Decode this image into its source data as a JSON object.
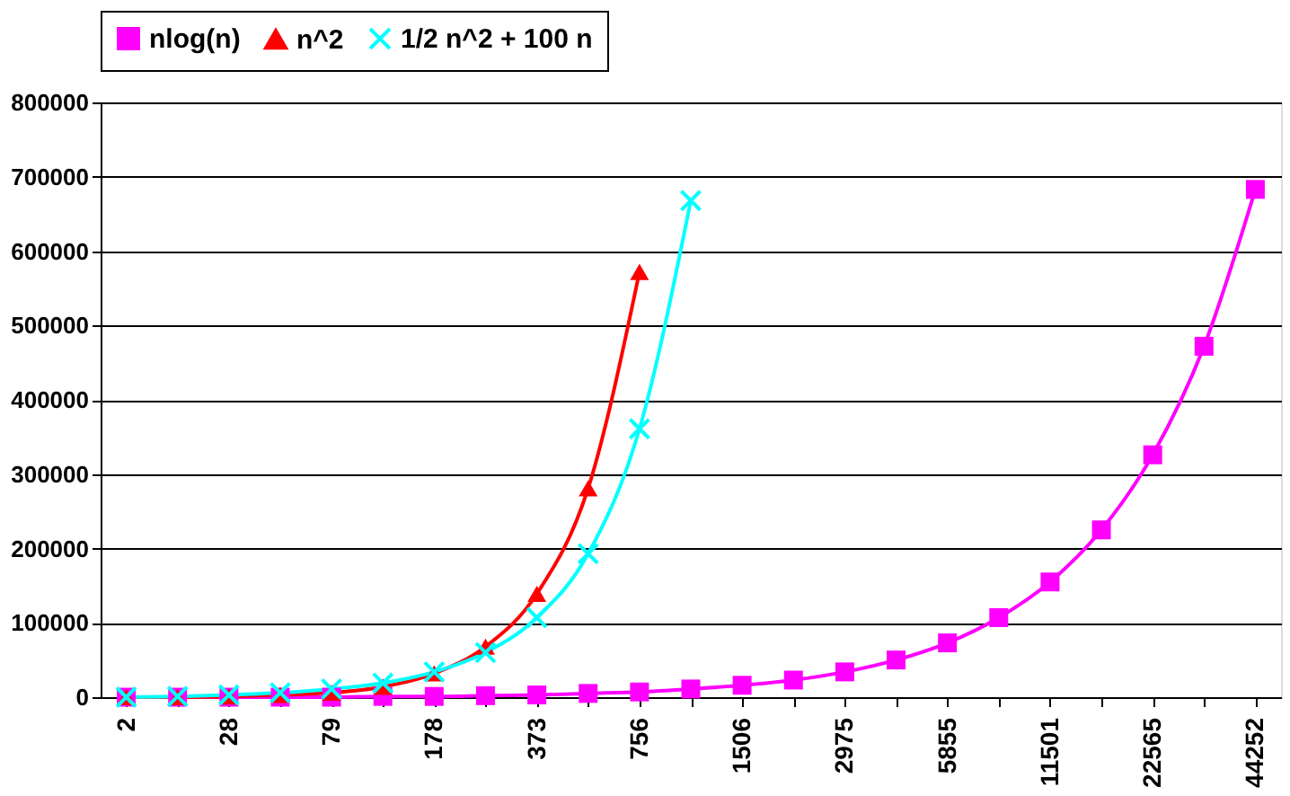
{
  "chart_data": {
    "type": "line",
    "categories": [
      "2",
      null,
      "28",
      null,
      "79",
      null,
      "178",
      null,
      "373",
      null,
      "756",
      null,
      "1506",
      null,
      "2975",
      null,
      "5855",
      null,
      "11501",
      null,
      "22565",
      null,
      "44252"
    ],
    "series": [
      {
        "name": "nlog(n)",
        "color": "#ff00ff",
        "marker": "square",
        "values": [
          0,
          0,
          0,
          0,
          0,
          1000,
          1000,
          2000,
          3000,
          5000,
          7000,
          11000,
          16000,
          23000,
          34000,
          50000,
          73000,
          107000,
          155000,
          225000,
          326000,
          472000,
          683000
        ]
      },
      {
        "name": "n^2",
        "color": "#ff0000",
        "marker": "triangle",
        "values": [
          0,
          0,
          1000,
          3000,
          6000,
          14000,
          32000,
          68000,
          139000,
          281000,
          572000,
          null,
          null,
          null,
          null,
          null,
          null,
          null,
          null,
          null,
          null,
          null,
          null
        ]
      },
      {
        "name": "1/2 n^2 + 100 n",
        "color": "#00ffff",
        "marker": "cross",
        "values": [
          0,
          1000,
          3000,
          6000,
          11000,
          19000,
          34000,
          60000,
          107000,
          193000,
          361000,
          668000,
          null,
          null,
          null,
          null,
          null,
          null,
          null,
          null,
          null,
          null,
          null
        ]
      }
    ],
    "ylim": [
      0,
      800000
    ],
    "yticks": [
      0,
      100000,
      200000,
      300000,
      400000,
      500000,
      600000,
      700000,
      800000
    ],
    "grid": "y",
    "legend": "top",
    "line_style": "solid"
  }
}
